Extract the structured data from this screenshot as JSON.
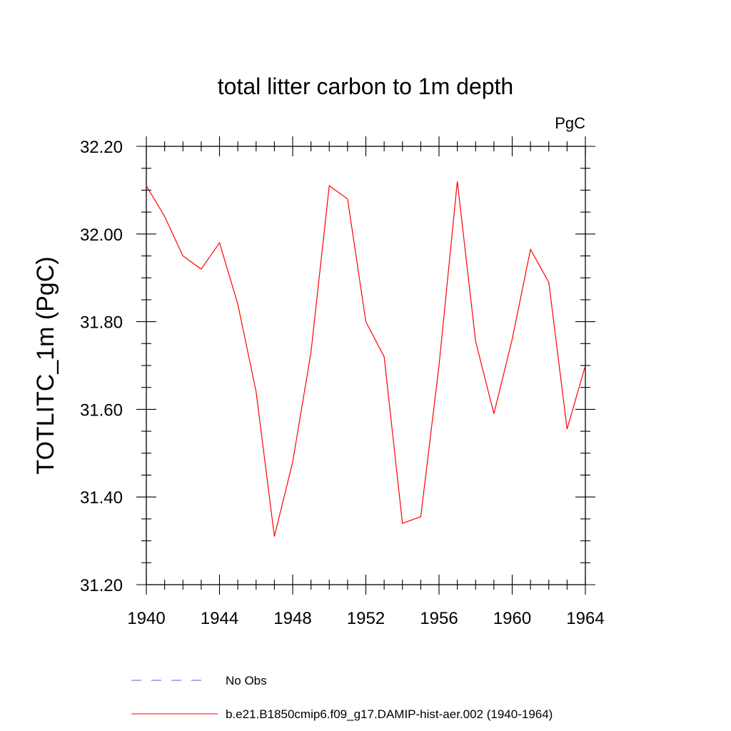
{
  "chart_data": {
    "type": "line",
    "title": "total litter carbon to 1m depth",
    "units_label": "PgC",
    "xlabel": "",
    "ylabel": "TOTLITC_1m  (PgC)",
    "xlim": [
      1940,
      1964
    ],
    "ylim": [
      31.2,
      32.2
    ],
    "x_ticks": [
      1940,
      1944,
      1948,
      1952,
      1956,
      1960,
      1964
    ],
    "x_tick_labels": [
      "1940",
      "1944",
      "1948",
      "1952",
      "1956",
      "1960",
      "1964"
    ],
    "y_ticks": [
      31.2,
      31.4,
      31.6,
      31.8,
      32.0,
      32.2
    ],
    "y_tick_labels": [
      "31.20",
      "31.40",
      "31.60",
      "31.80",
      "32.00",
      "32.20"
    ],
    "grid": false,
    "legend_position": "bottom",
    "series": [
      {
        "name": "b.e21.B1850cmip6.f09_g17.DAMIP-hist-aer.002 (1940-1964)",
        "color": "#ff0000",
        "style": "solid",
        "x": [
          1940,
          1941,
          1942,
          1943,
          1944,
          1945,
          1946,
          1947,
          1948,
          1949,
          1950,
          1951,
          1952,
          1953,
          1954,
          1955,
          1956,
          1957,
          1958,
          1959,
          1960,
          1961,
          1962,
          1963,
          1964
        ],
        "y": [
          32.11,
          32.04,
          31.95,
          31.92,
          31.98,
          31.84,
          31.64,
          31.31,
          31.48,
          31.73,
          32.11,
          32.08,
          31.8,
          31.72,
          31.34,
          31.355,
          31.7,
          32.12,
          31.755,
          31.59,
          31.76,
          31.965,
          31.89,
          31.555,
          31.7
        ]
      },
      {
        "name": "No Obs",
        "color": "#6a5acd",
        "style": "dashed",
        "x": [],
        "y": []
      }
    ]
  }
}
